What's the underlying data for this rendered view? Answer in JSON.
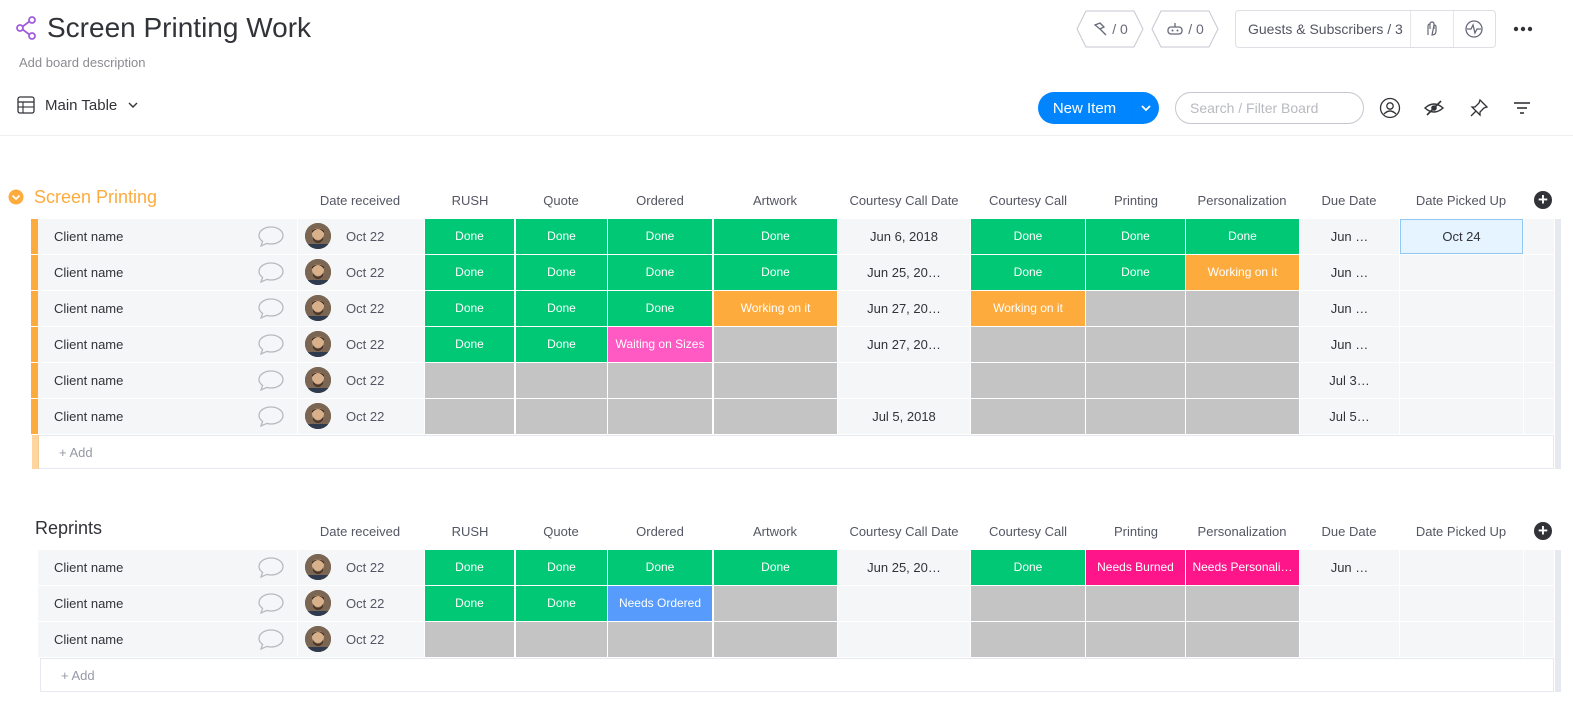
{
  "board": {
    "title": "Screen Printing Work",
    "description": "Add board description"
  },
  "header": {
    "activity_count": "/ 0",
    "integrations_count": "/ 0",
    "guests_label": "Guests & Subscribers / 3"
  },
  "toolbar": {
    "view_label": "Main Table",
    "new_item_label": "New Item",
    "search_placeholder": "Search / Filter Board"
  },
  "columns": [
    "Date received",
    "RUSH",
    "Quote",
    "Ordered",
    "Artwork",
    "Courtesy Call Date",
    "Courtesy Call",
    "Printing",
    "Personalization",
    "Due Date",
    "Date Picked Up"
  ],
  "colors": {
    "done": "#00c875",
    "working": "#fdab3d",
    "waiting": "#ff5ac4",
    "needs_burned": "#ff158a",
    "needs_ordered": "#579bfc",
    "empty": "#c4c4c4",
    "group1": "#fdab3d",
    "group2": "#c4c4c4",
    "accent": "#0085ff"
  },
  "groups": [
    {
      "title": "Screen Printing",
      "color": "#fdab3d",
      "add_label": "+ Add",
      "rows": [
        {
          "name": "Client name",
          "date_received": "Oct 22",
          "rush": "Done",
          "quote": "Done",
          "ordered": "Done",
          "artwork": "Done",
          "courtesy_call_date": "Jun 6, 2018",
          "courtesy_call": "Done",
          "printing": "Done",
          "personalization": "Done",
          "due_date": "Jun …",
          "date_picked_up": "Oct 24"
        },
        {
          "name": "Client name",
          "date_received": "Oct 22",
          "rush": "Done",
          "quote": "Done",
          "ordered": "Done",
          "artwork": "Done",
          "courtesy_call_date": "Jun 25, 20…",
          "courtesy_call": "Done",
          "printing": "Done",
          "personalization": "Working on it",
          "due_date": "Jun …",
          "date_picked_up": ""
        },
        {
          "name": "Client name",
          "date_received": "Oct 22",
          "rush": "Done",
          "quote": "Done",
          "ordered": "Done",
          "artwork": "Working on it",
          "courtesy_call_date": "Jun 27, 20…",
          "courtesy_call": "Working on it",
          "printing": "",
          "personalization": "",
          "due_date": "Jun …",
          "date_picked_up": ""
        },
        {
          "name": "Client name",
          "date_received": "Oct 22",
          "rush": "Done",
          "quote": "Done",
          "ordered": "Waiting on Sizes",
          "artwork": "",
          "courtesy_call_date": "Jun 27, 20…",
          "courtesy_call": "",
          "printing": "",
          "personalization": "",
          "due_date": "Jun …",
          "date_picked_up": ""
        },
        {
          "name": "Client name",
          "date_received": "Oct 22",
          "rush": "",
          "quote": "",
          "ordered": "",
          "artwork": "",
          "courtesy_call_date": "",
          "courtesy_call": "",
          "printing": "",
          "personalization": "",
          "due_date": "Jul 3…",
          "date_picked_up": ""
        },
        {
          "name": "Client name",
          "date_received": "Oct 22",
          "rush": "",
          "quote": "",
          "ordered": "",
          "artwork": "",
          "courtesy_call_date": "Jul 5, 2018",
          "courtesy_call": "",
          "printing": "",
          "personalization": "",
          "due_date": "Jul 5…",
          "date_picked_up": ""
        }
      ]
    },
    {
      "title": "Reprints",
      "color": "#c4c4c4",
      "add_label": "+ Add",
      "rows": [
        {
          "name": "Client name",
          "date_received": "Oct 22",
          "rush": "Done",
          "quote": "Done",
          "ordered": "Done",
          "artwork": "Done",
          "courtesy_call_date": "Jun 25, 20…",
          "courtesy_call": "Done",
          "printing": "Needs Burned",
          "personalization": "Needs Personali…",
          "due_date": "Jun …",
          "date_picked_up": ""
        },
        {
          "name": "Client name",
          "date_received": "Oct 22",
          "rush": "Done",
          "quote": "Done",
          "ordered": "Needs Ordered",
          "artwork": "",
          "courtesy_call_date": "",
          "courtesy_call": "",
          "printing": "",
          "personalization": "",
          "due_date": "",
          "date_picked_up": ""
        },
        {
          "name": "Client name",
          "date_received": "Oct 22",
          "rush": "",
          "quote": "",
          "ordered": "",
          "artwork": "",
          "courtesy_call_date": "",
          "courtesy_call": "",
          "printing": "",
          "personalization": "",
          "due_date": "",
          "date_picked_up": ""
        }
      ]
    }
  ]
}
